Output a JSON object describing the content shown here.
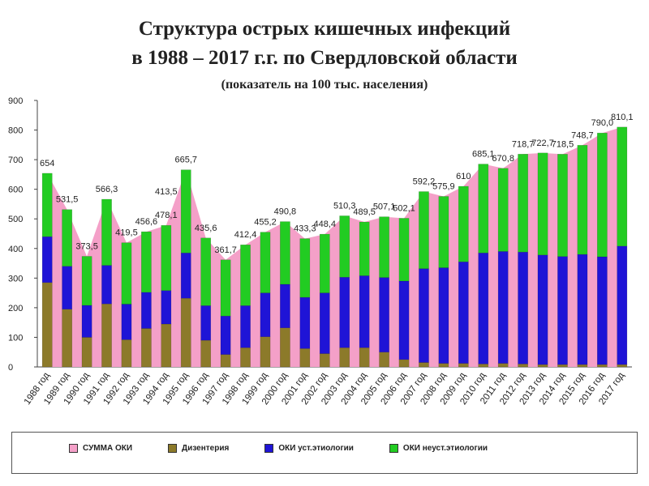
{
  "title": {
    "line1": "Структура острых кишечных инфекций",
    "line2": "в 1988 – 2017 г.г. по Свердловской области",
    "line3": "(показатель на 100 тыс. населения)"
  },
  "colors": {
    "summa": "#f4a0c8",
    "dys": "#8c7a2a",
    "ust": "#1f14d6",
    "neust": "#22cc22"
  },
  "chart_data": {
    "type": "bar",
    "ylim": [
      0,
      900
    ],
    "yticks": [
      "0",
      "100",
      "200",
      "300",
      "400",
      "500",
      "600",
      "700",
      "800",
      "900"
    ],
    "categories": [
      "1988 год",
      "1989 год",
      "1990 год",
      "1991 год",
      "1992 год",
      "1993 год",
      "1994 год",
      "1995 год",
      "1996 год",
      "1997 год",
      "1998 год",
      "1999 год",
      "2000 год",
      "2001 год",
      "2002 год",
      "2003 год",
      "2004 год",
      "2005 год",
      "2006 год",
      "2007 год",
      "2008 год",
      "2009 год",
      "2010 год",
      "2011 год",
      "2012 год",
      "2013 год",
      "2014 год",
      "2015 год",
      "2016 год",
      "2017 год"
    ],
    "series": [
      {
        "name": "СУММА ОКИ",
        "values": [
          654,
          531.5,
          373.5,
          566.3,
          419.5,
          456.6,
          478.1,
          665.7,
          435.6,
          361.7,
          412.4,
          455.2,
          490.8,
          433.3,
          448.4,
          510.3,
          489.5,
          507.1,
          502.1,
          592.2,
          575.9,
          610,
          685.1,
          670.8,
          718.7,
          722.7,
          718.5,
          748.7,
          790,
          810.1
        ]
      },
      {
        "name": "Дизентерия",
        "values": [
          285,
          195,
          100,
          213,
          92,
          130,
          145,
          232,
          90,
          42,
          65,
          102,
          132,
          62,
          45,
          65,
          65,
          50,
          25,
          15,
          12,
          12,
          10,
          12,
          10,
          8,
          8,
          8,
          8,
          8
        ]
      },
      {
        "name": "ОКИ уст.этиологии",
        "values": [
          155,
          145,
          108,
          130,
          120,
          122,
          113,
          153,
          117,
          130,
          142,
          148,
          147,
          173,
          205,
          238,
          243,
          252,
          265,
          317,
          323,
          343,
          375,
          378,
          378,
          370,
          365,
          372,
          364,
          400
        ]
      },
      {
        "name": "ОКИ неуст.этиологии",
        "values": [
          214,
          191.5,
          165.5,
          223.3,
          207.5,
          204.6,
          220.1,
          280.7,
          228.6,
          189.7,
          205.4,
          205.2,
          211.8,
          198.3,
          198.4,
          207.3,
          181.5,
          205.1,
          212.1,
          260.2,
          240.9,
          255,
          300.1,
          280.8,
          330.7,
          344.7,
          345.5,
          368.7,
          418,
          402.1
        ]
      }
    ],
    "data_labels": [
      "654",
      "531,5",
      "373,5",
      "566,3",
      "419,5",
      "456,6",
      "478,1",
      "665,7",
      "435,6",
      "361,7",
      "412,4",
      "455,2",
      "490,8",
      "433,3",
      "448,4",
      "510,3",
      "489,5",
      "507,1",
      "502,1",
      "592,2",
      "575,9",
      "610",
      "685,1",
      "670,8",
      "718,7",
      "722,7",
      "718,5",
      "748,7",
      "790,0",
      "810,1"
    ],
    "extra_labels": [
      {
        "index": 6,
        "text": "413,5"
      }
    ]
  }
}
